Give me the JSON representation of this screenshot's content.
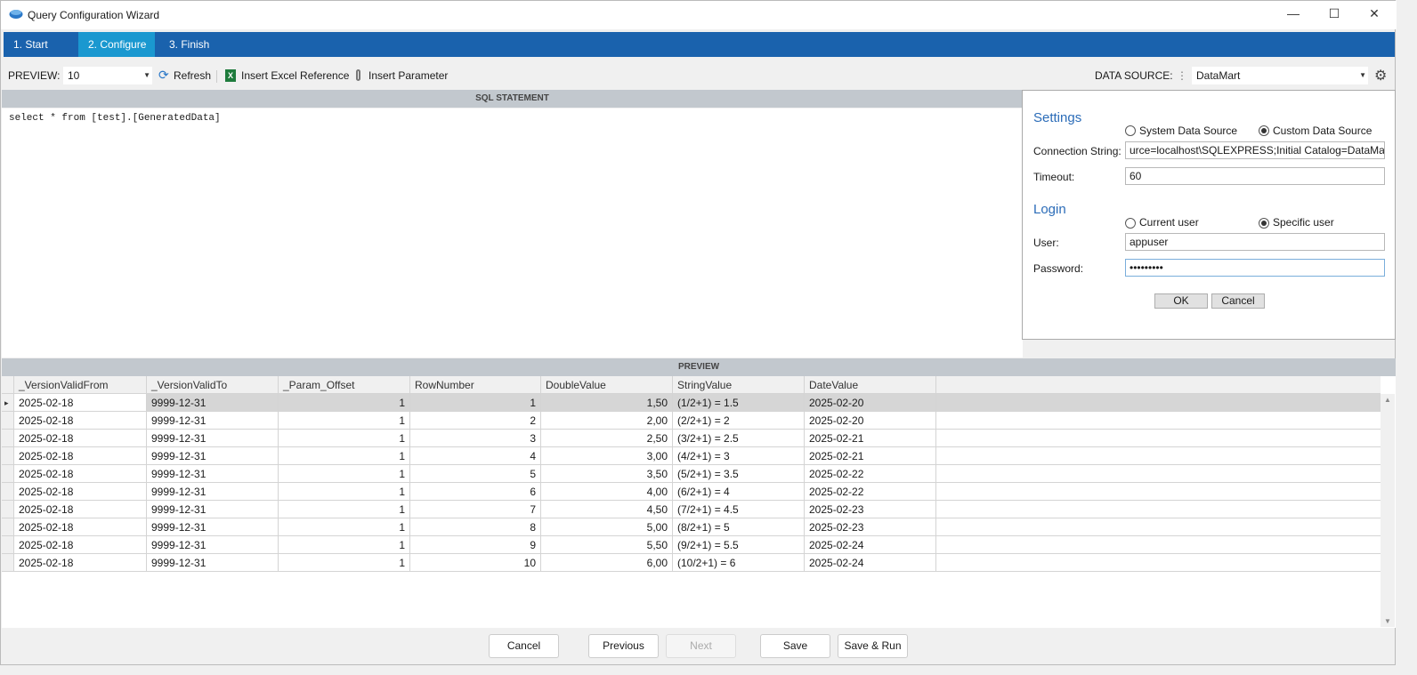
{
  "window": {
    "title": "Query Configuration Wizard",
    "minimize": "—",
    "maximize": "☐",
    "close": "✕"
  },
  "steps": [
    {
      "label": "1. Start"
    },
    {
      "label": "2. Configure"
    },
    {
      "label": "3. Finish"
    }
  ],
  "colors": {
    "step_bar": "#1a62ad",
    "active_step": "#1a98d0",
    "section_header": "#c2c8ce",
    "link_blue": "#2b6cb8"
  },
  "toolbar": {
    "preview_label": "PREVIEW:",
    "preview_value": "10",
    "refresh": "Refresh",
    "insert_excel": "Insert Excel Reference",
    "insert_param": "Insert Parameter",
    "data_source_label": "DATA SOURCE:",
    "data_source_value": "DataMart"
  },
  "sql": {
    "header": "SQL STATEMENT",
    "text": "select * from [test].[GeneratedData]"
  },
  "settings": {
    "title": "Settings",
    "radio_system": "System Data Source",
    "radio_custom": "Custom Data Source",
    "selected": "Custom Data Source",
    "conn_label": "Connection String:",
    "conn_value": "urce=localhost\\SQLEXPRESS;Initial Catalog=DataMart",
    "timeout_label": "Timeout:",
    "timeout_value": "60",
    "login_title": "Login",
    "radio_current": "Current user",
    "radio_specific": "Specific user",
    "login_selected": "Specific user",
    "user_label": "User:",
    "user_value": "appuser",
    "password_label": "Password:",
    "password_value": "•••••••••",
    "ok": "OK",
    "cancel": "Cancel"
  },
  "preview": {
    "header": "PREVIEW",
    "columns": [
      "_VersionValidFrom",
      "_VersionValidTo",
      "_Param_Offset",
      "RowNumber",
      "DoubleValue",
      "StringValue",
      "DateValue"
    ],
    "rows": [
      [
        "2025-02-18",
        "9999-12-31",
        "1",
        "1",
        "1,50",
        "(1/2+1) = 1.5",
        "2025-02-20"
      ],
      [
        "2025-02-18",
        "9999-12-31",
        "1",
        "2",
        "2,00",
        "(2/2+1) = 2",
        "2025-02-20"
      ],
      [
        "2025-02-18",
        "9999-12-31",
        "1",
        "3",
        "2,50",
        "(3/2+1) = 2.5",
        "2025-02-21"
      ],
      [
        "2025-02-18",
        "9999-12-31",
        "1",
        "4",
        "3,00",
        "(4/2+1) = 3",
        "2025-02-21"
      ],
      [
        "2025-02-18",
        "9999-12-31",
        "1",
        "5",
        "3,50",
        "(5/2+1) = 3.5",
        "2025-02-22"
      ],
      [
        "2025-02-18",
        "9999-12-31",
        "1",
        "6",
        "4,00",
        "(6/2+1) = 4",
        "2025-02-22"
      ],
      [
        "2025-02-18",
        "9999-12-31",
        "1",
        "7",
        "4,50",
        "(7/2+1) = 4.5",
        "2025-02-23"
      ],
      [
        "2025-02-18",
        "9999-12-31",
        "1",
        "8",
        "5,00",
        "(8/2+1) = 5",
        "2025-02-23"
      ],
      [
        "2025-02-18",
        "9999-12-31",
        "1",
        "9",
        "5,50",
        "(9/2+1) = 5.5",
        "2025-02-24"
      ],
      [
        "2025-02-18",
        "9999-12-31",
        "1",
        "10",
        "6,00",
        "(10/2+1) = 6",
        "2025-02-24"
      ]
    ]
  },
  "footer": {
    "cancel": "Cancel",
    "previous": "Previous",
    "next": "Next",
    "save": "Save",
    "save_run": "Save & Run"
  }
}
